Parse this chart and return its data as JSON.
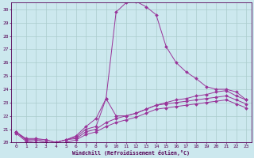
{
  "xlabel": "Windchill (Refroidissement éolien,°C)",
  "bg_color": "#cce8ee",
  "grid_color": "#aacccc",
  "line_color": "#993399",
  "xlim": [
    -0.5,
    23.5
  ],
  "ylim": [
    20,
    30.5
  ],
  "yticks": [
    20,
    21,
    22,
    23,
    24,
    25,
    26,
    27,
    28,
    29,
    30
  ],
  "xticks": [
    0,
    1,
    2,
    3,
    4,
    5,
    6,
    7,
    8,
    9,
    10,
    11,
    12,
    13,
    14,
    15,
    16,
    17,
    18,
    19,
    20,
    21,
    22,
    23
  ],
  "curves": [
    {
      "x": [
        0,
        1,
        2,
        3,
        4,
        5,
        6,
        7,
        8,
        9,
        10,
        11,
        12,
        13,
        14,
        15,
        16,
        17,
        18,
        19,
        20,
        21,
        22,
        23
      ],
      "y": [
        20.8,
        20.3,
        20.3,
        20.2,
        20.0,
        20.2,
        20.5,
        21.2,
        21.8,
        23.3,
        29.8,
        30.5,
        30.6,
        30.2,
        29.6,
        27.2,
        26.0,
        25.3,
        24.8,
        24.2,
        24.0,
        24.0,
        23.8,
        23.2
      ]
    },
    {
      "x": [
        0,
        1,
        2,
        3,
        4,
        5,
        6,
        7,
        8,
        9,
        10,
        11,
        12,
        13,
        14,
        15,
        16,
        17,
        18,
        19,
        20,
        21,
        22,
        23
      ],
      "y": [
        20.8,
        20.2,
        20.2,
        20.2,
        20.0,
        20.2,
        20.4,
        21.0,
        21.2,
        23.3,
        22.0,
        22.0,
        22.2,
        22.5,
        22.8,
        23.0,
        23.2,
        23.3,
        23.5,
        23.6,
        23.8,
        23.9,
        23.5,
        23.2
      ]
    },
    {
      "x": [
        0,
        1,
        2,
        3,
        4,
        5,
        6,
        7,
        8,
        9,
        10,
        11,
        12,
        13,
        14,
        15,
        16,
        17,
        18,
        19,
        20,
        21,
        22,
        23
      ],
      "y": [
        20.8,
        20.2,
        20.2,
        20.0,
        20.0,
        20.2,
        20.3,
        20.8,
        21.0,
        21.5,
        21.8,
        22.0,
        22.2,
        22.5,
        22.8,
        22.9,
        23.0,
        23.1,
        23.2,
        23.3,
        23.4,
        23.5,
        23.2,
        22.9
      ]
    },
    {
      "x": [
        0,
        1,
        2,
        3,
        4,
        5,
        6,
        7,
        8,
        9,
        10,
        11,
        12,
        13,
        14,
        15,
        16,
        17,
        18,
        19,
        20,
        21,
        22,
        23
      ],
      "y": [
        20.7,
        20.1,
        20.0,
        20.0,
        19.9,
        20.0,
        20.2,
        20.6,
        20.8,
        21.2,
        21.5,
        21.7,
        21.9,
        22.2,
        22.5,
        22.6,
        22.7,
        22.8,
        22.9,
        23.0,
        23.1,
        23.2,
        22.9,
        22.6
      ]
    }
  ]
}
